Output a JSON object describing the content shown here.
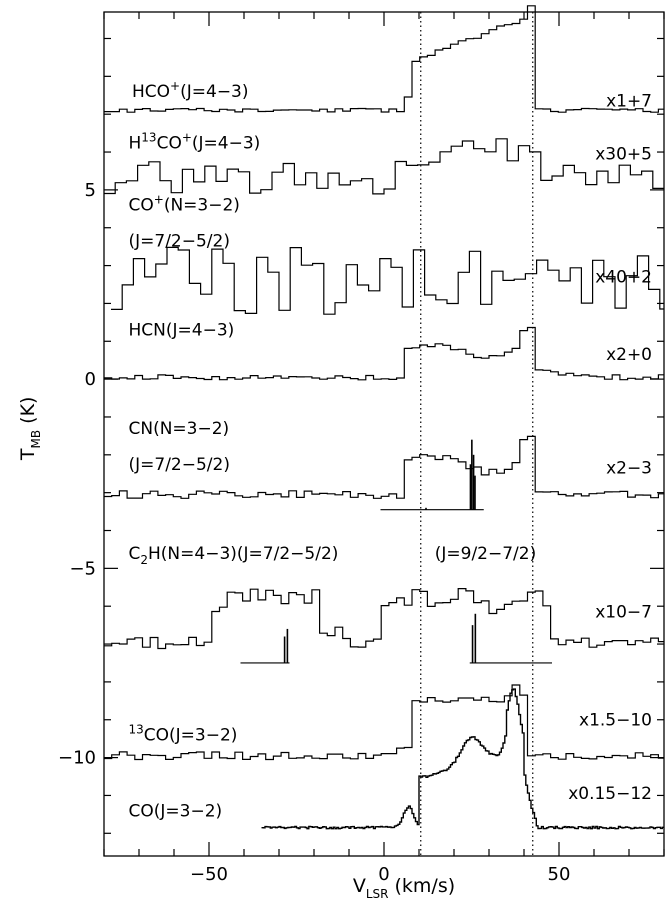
{
  "chart_data": {
    "type": "line",
    "xlabel": "V",
    "xlabel_sub": "LSR",
    "xlabel_unit": " (km/s)",
    "ylabel": "T",
    "ylabel_sub": "MB",
    "ylabel_unit": " (K)",
    "xlim": [
      -80,
      80
    ],
    "ylim": [
      -12.6,
      9.7
    ],
    "x_ticks": [
      -50,
      0,
      50
    ],
    "x_tick_labels": [
      "−50",
      "0",
      "50"
    ],
    "y_ticks": [
      -10,
      -5,
      0,
      5
    ],
    "y_tick_labels": [
      "−10",
      "−5",
      "0",
      "5"
    ],
    "grid": false,
    "ref_lines_x": [
      10.5,
      42.5
    ],
    "series": [
      {
        "label_parts": [
          [
            "HCO",
            ""
          ],
          [
            "+",
            "sup"
          ],
          [
            "(J=4−3)",
            ""
          ]
        ],
        "scale": "x1+7",
        "baseline": 7.1,
        "lx": -72,
        "ly": 7.45,
        "sy": 7.2,
        "xmin": -80,
        "xmax": 80,
        "step": 2.2,
        "noise": 0.05,
        "shape": "hco",
        "shape_amp": 1,
        "seed": 11
      },
      {
        "label_parts": [
          [
            "H",
            ""
          ],
          [
            "13",
            "sup"
          ],
          [
            "CO",
            ""
          ],
          [
            "+",
            "sup"
          ],
          [
            "(J=4−3)",
            ""
          ]
        ],
        "scale": "x30+5",
        "baseline": 5.3,
        "lx": -73,
        "ly": 6.1,
        "sy": 5.8,
        "xmin": -80,
        "xmax": 80,
        "step": 3.2,
        "noise": 0.45,
        "shape": "hco",
        "shape_amp": 0.35,
        "seed": 23
      },
      {
        "label_parts": [
          [
            "CO",
            ""
          ],
          [
            "+",
            "sup"
          ],
          [
            "(N=3−2)",
            ""
          ]
        ],
        "label2": "(J=7/2−5/2)",
        "scale": "x40+2",
        "baseline": 2.6,
        "lx": -73,
        "ly": 4.45,
        "ly2": 3.5,
        "sy": 2.55,
        "xmin": -78,
        "xmax": 80,
        "step": 3.2,
        "noise": 0.9,
        "shape": "none",
        "shape_amp": 0,
        "seed": 37
      },
      {
        "label_parts": [
          [
            "HCN(J=4−3)",
            ""
          ]
        ],
        "scale": "x2+0",
        "baseline": 0.05,
        "lx": -73,
        "ly": 1.15,
        "sy": 0.5,
        "xmin": -80,
        "xmax": 80,
        "step": 2.2,
        "noise": 0.07,
        "shape": "hcn",
        "shape_amp": 0.7,
        "seed": 41
      },
      {
        "label_parts": [
          [
            "CN(N=3−2)",
            ""
          ]
        ],
        "label2": "(J=7/2−5/2)",
        "scale": "x2−3",
        "baseline": -3.05,
        "lx": -73,
        "ly": -1.45,
        "ly2": -2.4,
        "sy": -2.5,
        "xmin": -80,
        "xmax": 80,
        "step": 2.2,
        "noise": 0.1,
        "shape": "hcn",
        "shape_amp": 0.8,
        "seed": 53
      },
      {
        "label_parts": [
          [
            "C",
            ""
          ],
          [
            "2",
            "sub"
          ],
          [
            "H(N=4−3)(J=7/2−5/2)",
            ""
          ]
        ],
        "scale": "x10−7",
        "baseline": -6.95,
        "lx": -73,
        "ly": -4.75,
        "sy": -6.3,
        "xmin": -80,
        "xmax": 80,
        "step": 2.2,
        "noise": 0.2,
        "shape": "c2h",
        "shape_amp": 1,
        "seed": 67
      },
      {
        "label_parts": [
          [
            "13",
            "sup"
          ],
          [
            "CO(J=3−2)",
            ""
          ]
        ],
        "scale": "x1.5−10",
        "baseline": -9.95,
        "lx": -73,
        "ly": -9.55,
        "sy": -9.15,
        "xmin": -80,
        "xmax": 80,
        "step": 2.2,
        "noise": 0.1,
        "shape": "co13",
        "shape_amp": 1,
        "seed": 79
      },
      {
        "label_parts": [
          [
            "CO(J=3−2)",
            ""
          ]
        ],
        "scale": "x0.15−12",
        "baseline": -11.85,
        "lx": -73,
        "ly": -11.55,
        "sy": -11.1,
        "xmin": -35,
        "xmax": 80,
        "step": 0.5,
        "noise": 0.03,
        "shape": "co",
        "shape_amp": 1,
        "seed": 97
      }
    ],
    "extra_labels": [
      {
        "text": "(J=9/2−7/2)",
        "x": 14.5,
        "y": -4.75
      }
    ],
    "hyperfine_sets": [
      {
        "baseline": -3.45,
        "x0": -1,
        "x1": 28.5,
        "lines": [
          [
            12,
            0.05
          ],
          [
            24.7,
            1.2
          ],
          [
            25.1,
            1.85
          ],
          [
            25.6,
            1.45
          ],
          [
            26,
            0.9
          ]
        ]
      },
      {
        "baseline": -7.5,
        "x0": -41,
        "x1": -27,
        "lines": [
          [
            -28.4,
            0.7
          ],
          [
            -27.6,
            0.9
          ]
        ]
      },
      {
        "baseline": -7.5,
        "x0": 24.5,
        "x1": 48,
        "lines": [
          [
            25.3,
            1.0
          ],
          [
            26.1,
            1.3
          ]
        ]
      }
    ]
  }
}
